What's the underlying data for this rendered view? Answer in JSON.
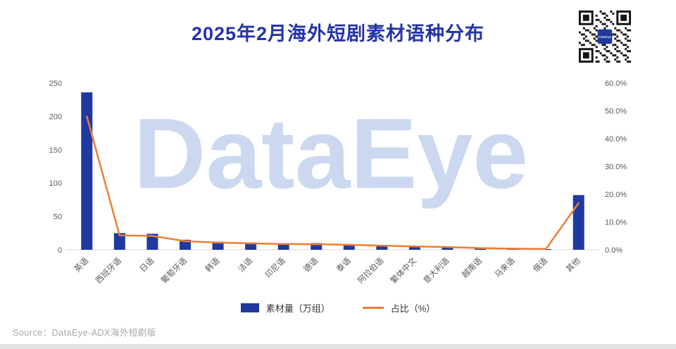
{
  "page": {
    "title": "2025年2月海外短剧素材语种分布",
    "source": "Source：DataEye-ADX海外短剧版",
    "watermark": "DataEye",
    "qr_label": "DataEye"
  },
  "colors": {
    "bar": "#1e3aa0",
    "line": "#ED7D31",
    "title": "#2434A8",
    "axis_text": "#595959",
    "watermark": "#cbd8f0"
  },
  "legend": {
    "bar_label": "素材量（万组）",
    "line_label": "占比（%）"
  },
  "chart_data": {
    "type": "bar+line combo",
    "title": "2025年2月海外短剧素材语种分布",
    "categories": [
      "英语",
      "西班牙语",
      "日语",
      "葡萄牙语",
      "韩语",
      "法语",
      "印尼语",
      "德语",
      "泰语",
      "阿拉伯语",
      "繁体中文",
      "意大利语",
      "越南语",
      "马来语",
      "俄语",
      "其他"
    ],
    "series": [
      {
        "name": "素材量（万组）",
        "type": "bar",
        "axis": "left",
        "values": [
          236,
          25,
          24,
          15,
          12,
          11,
          10,
          10,
          8,
          7,
          6,
          5,
          3,
          2,
          1,
          82
        ]
      },
      {
        "name": "占比（%）",
        "type": "line",
        "axis": "right",
        "values": [
          48,
          5.2,
          5.0,
          3.1,
          2.6,
          2.3,
          2.1,
          2.0,
          1.8,
          1.5,
          1.2,
          1.0,
          0.6,
          0.4,
          0.3,
          16.8
        ]
      }
    ],
    "left_axis": {
      "min": 0,
      "max": 250,
      "step": 50,
      "ticks": [
        "0",
        "50",
        "100",
        "150",
        "200",
        "250"
      ]
    },
    "right_axis": {
      "min": 0,
      "max": 60,
      "step": 10,
      "ticks": [
        "0.0%",
        "10.0%",
        "20.0%",
        "30.0%",
        "40.0%",
        "50.0%",
        "60.0%"
      ]
    },
    "grid": false,
    "legend_position": "bottom"
  }
}
